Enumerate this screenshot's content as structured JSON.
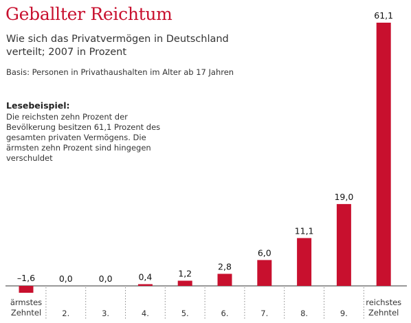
{
  "colors": {
    "accent": "#c8102e",
    "bar": "#c8102e"
  },
  "chart_data": {
    "type": "bar",
    "title": "Geballter Reichtum",
    "subtitle": "Wie sich das Privatvermögen in Deutschland verteilt; 2007 in Prozent",
    "basis": "Basis: Personen in Privathaushalten im Alter ab 17 Jahren",
    "example_heading": "Lesebeispiel:",
    "example_text": "Die reichsten zehn Prozent der Bevölkerung besitzen 61,1 Prozent des gesamten privaten Vermögens. Die ärmsten zehn Prozent sind hingegen verschuldet",
    "categories": [
      "ärmstes Zehntel",
      "2.",
      "3.",
      "4.",
      "5.",
      "6.",
      "7.",
      "8.",
      "9.",
      "reichstes Zehntel"
    ],
    "category_lines": [
      [
        "ärmstes",
        "Zehntel"
      ],
      [
        "2."
      ],
      [
        "3."
      ],
      [
        "4."
      ],
      [
        "5."
      ],
      [
        "6."
      ],
      [
        "7."
      ],
      [
        "8."
      ],
      [
        "9."
      ],
      [
        "reichstes",
        "Zehntel"
      ]
    ],
    "values": [
      -1.6,
      0.0,
      0.0,
      0.4,
      1.2,
      2.8,
      6.0,
      11.1,
      19.0,
      61.1
    ],
    "value_labels": [
      "–1,6",
      "0,0",
      "0,0",
      "0,4",
      "1,2",
      "2,8",
      "6,0",
      "11,1",
      "19,0",
      "61,1"
    ],
    "ylim": [
      -1.6,
      61.1
    ],
    "xlabel": "",
    "ylabel": "",
    "grid": false,
    "legend": "none"
  }
}
